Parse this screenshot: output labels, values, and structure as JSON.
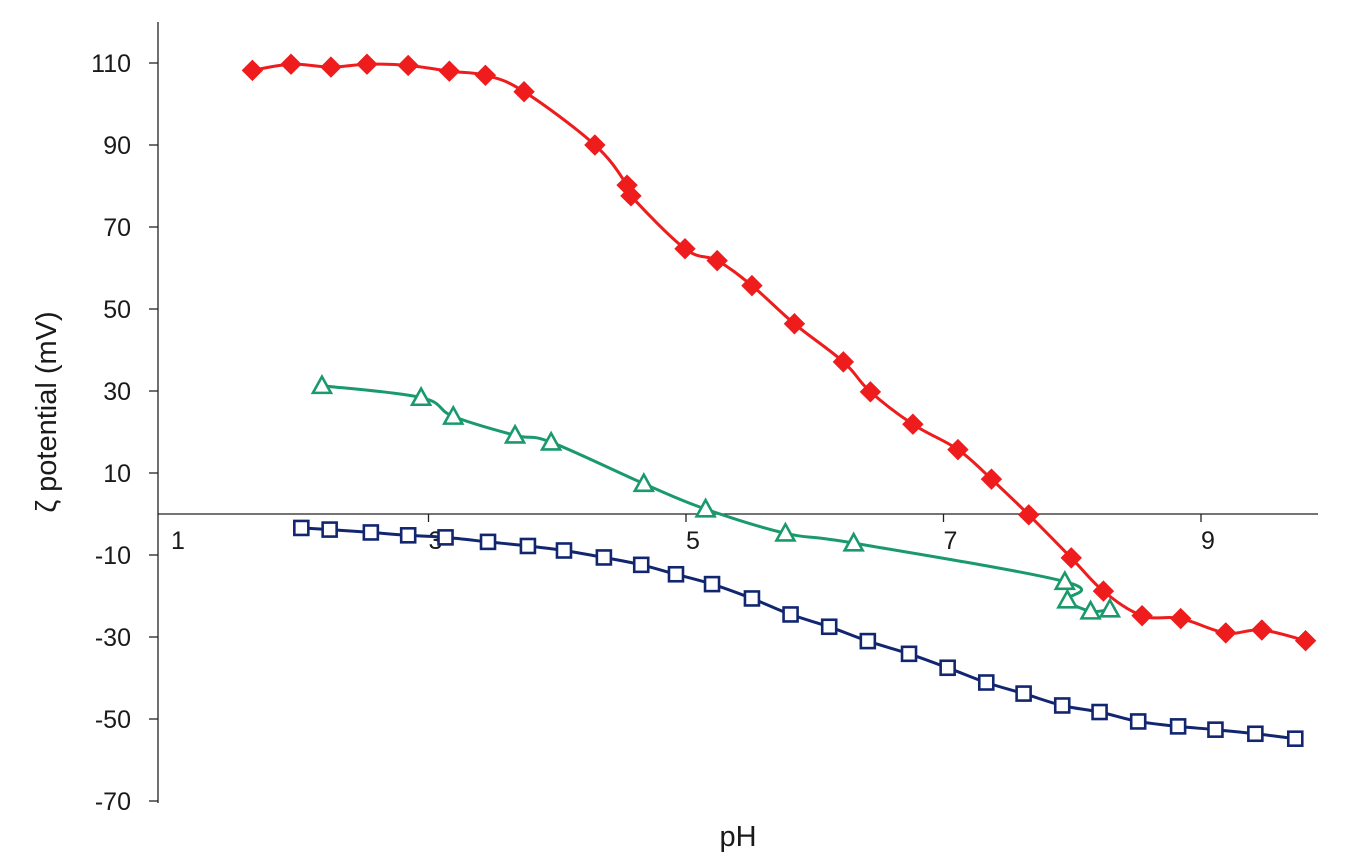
{
  "chart_data": {
    "type": "line",
    "xlabel": "pH",
    "ylabel": "ζ potential (mV)",
    "xlim": [
      1,
      10
    ],
    "ylim": [
      -70,
      120
    ],
    "x_ticks": [
      1,
      3,
      5,
      7,
      9
    ],
    "y_ticks": [
      110,
      90,
      70,
      50,
      30,
      10,
      -10,
      -30,
      -50,
      -70
    ],
    "x_tick_labels": [
      "1",
      "3",
      "5",
      "7",
      "9"
    ],
    "y_tick_labels": [
      "110",
      "90",
      "70",
      "50",
      "30",
      "10",
      "-10",
      "-30",
      "-50",
      "-70"
    ],
    "grid": false,
    "legend": "none",
    "series": [
      {
        "marker": "diamond-filled",
        "color": "#ee1c1c",
        "points": [
          [
            1.64,
            108.2
          ],
          [
            1.94,
            109.7
          ],
          [
            2.25,
            109.0
          ],
          [
            2.53,
            109.7
          ],
          [
            2.85,
            109.4
          ],
          [
            3.17,
            108.0
          ],
          [
            3.45,
            107.0
          ],
          [
            3.75,
            103.0
          ],
          [
            4.3,
            90.0
          ],
          [
            4.55,
            80.2
          ],
          [
            4.58,
            77.6
          ],
          [
            5.0,
            64.7
          ],
          [
            5.25,
            61.8
          ],
          [
            5.52,
            55.7
          ],
          [
            5.85,
            46.4
          ],
          [
            6.23,
            37.1
          ],
          [
            6.44,
            29.8
          ],
          [
            6.77,
            21.9
          ],
          [
            7.12,
            15.7
          ],
          [
            7.38,
            8.5
          ],
          [
            7.67,
            -0.2
          ],
          [
            8.0,
            -10.7
          ],
          [
            8.25,
            -18.8
          ],
          [
            8.55,
            -24.8
          ],
          [
            8.85,
            -25.5
          ],
          [
            9.2,
            -29.0
          ],
          [
            9.48,
            -28.3
          ],
          [
            9.82,
            -30.9
          ]
        ]
      },
      {
        "marker": "triangle-open",
        "color": "#1a9a6c",
        "points": [
          [
            2.18,
            31.3
          ],
          [
            2.95,
            28.4
          ],
          [
            3.2,
            23.8
          ],
          [
            3.68,
            19.2
          ],
          [
            3.96,
            17.5
          ],
          [
            4.68,
            7.4
          ],
          [
            5.16,
            1.2
          ],
          [
            5.78,
            -4.7
          ],
          [
            6.31,
            -7.1
          ],
          [
            7.95,
            -16.5
          ],
          [
            7.97,
            -21.0
          ],
          [
            8.15,
            -23.7
          ],
          [
            8.3,
            -23.2
          ]
        ]
      },
      {
        "marker": "square-open",
        "color": "#122670",
        "points": [
          [
            2.02,
            -3.4
          ],
          [
            2.24,
            -3.8
          ],
          [
            2.56,
            -4.5
          ],
          [
            2.85,
            -5.2
          ],
          [
            3.14,
            -5.7
          ],
          [
            3.47,
            -6.8
          ],
          [
            3.78,
            -7.8
          ],
          [
            4.06,
            -8.9
          ],
          [
            4.37,
            -10.6
          ],
          [
            4.66,
            -12.4
          ],
          [
            4.93,
            -14.7
          ],
          [
            5.21,
            -17.1
          ],
          [
            5.52,
            -20.6
          ],
          [
            5.82,
            -24.5
          ],
          [
            6.12,
            -27.5
          ],
          [
            6.42,
            -31.0
          ],
          [
            6.74,
            -34.1
          ],
          [
            7.04,
            -37.5
          ],
          [
            7.34,
            -41.1
          ],
          [
            7.63,
            -43.8
          ],
          [
            7.93,
            -46.7
          ],
          [
            8.22,
            -48.3
          ],
          [
            8.52,
            -50.6
          ],
          [
            8.83,
            -51.8
          ],
          [
            9.12,
            -52.6
          ],
          [
            9.43,
            -53.6
          ],
          [
            9.74,
            -54.8
          ]
        ]
      }
    ]
  }
}
